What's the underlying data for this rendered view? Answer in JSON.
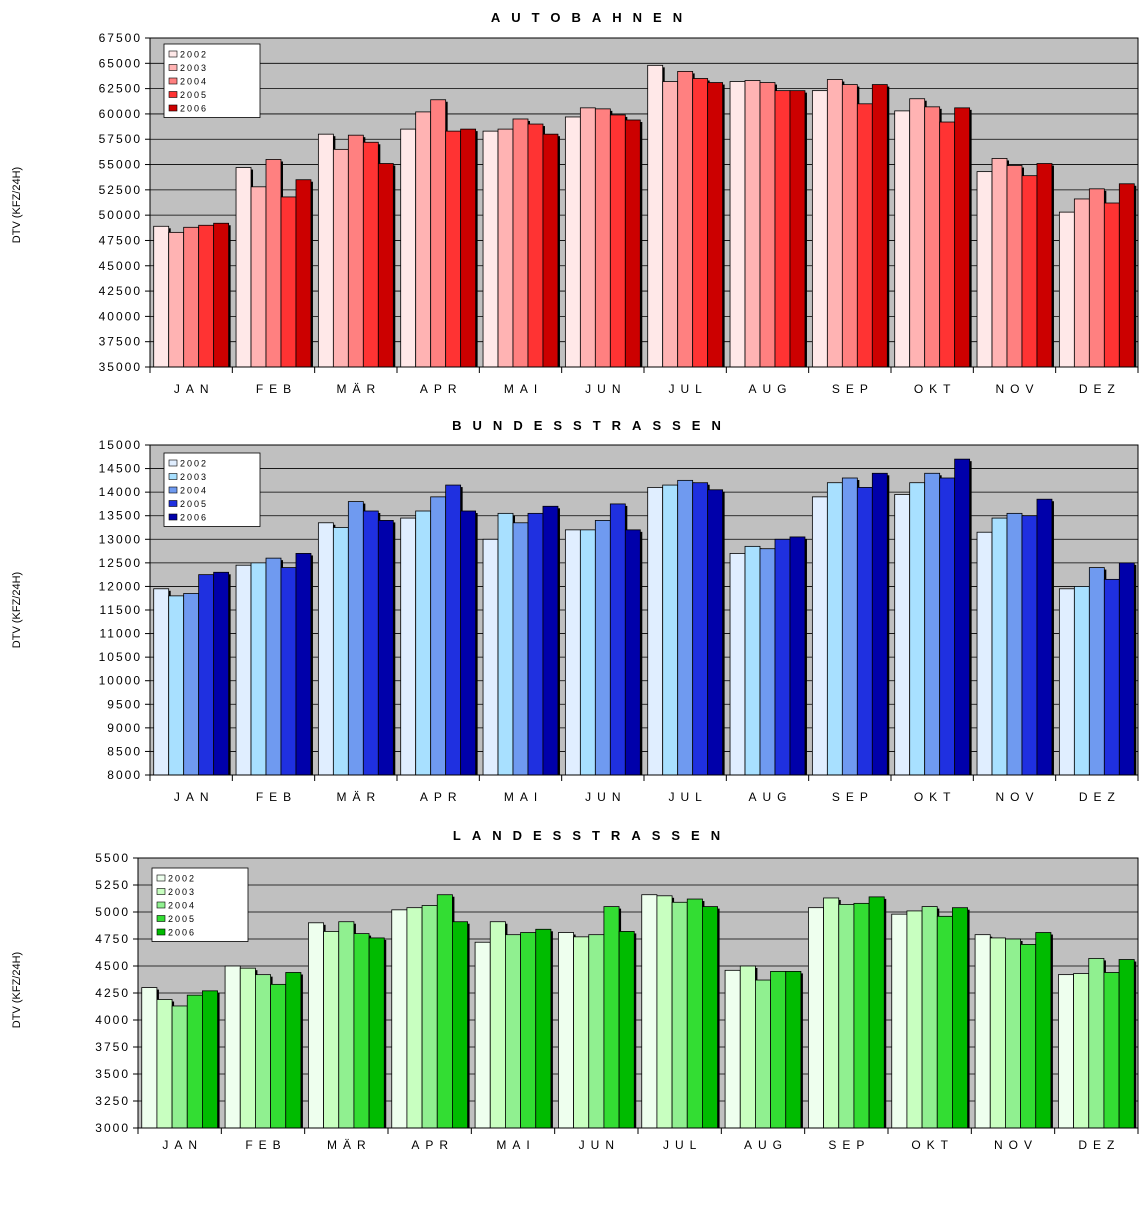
{
  "chart_data": [
    {
      "type": "bar",
      "title": "AUTOBAHNEN",
      "ylabel": "DTV (KFZ/24H)",
      "ylim": [
        35000,
        67500
      ],
      "ystep": 2500,
      "yticks": [
        "35000",
        "37500",
        "40000",
        "42500",
        "45000",
        "47500",
        "50000",
        "52500",
        "55000",
        "57500",
        "60000",
        "62500",
        "65000",
        "67500"
      ],
      "grid": true,
      "legend_position": "top-left",
      "categories": [
        "JAN",
        "FEB",
        "MÄR",
        "APR",
        "MAI",
        "JUN",
        "JUL",
        "AUG",
        "SEP",
        "OKT",
        "NOV",
        "DEZ"
      ],
      "colors": [
        "#FFE8E8",
        "#FFB3B3",
        "#FF8080",
        "#FF3333",
        "#CC0000"
      ],
      "series": [
        {
          "name": "2002",
          "values": [
            48900,
            54700,
            58000,
            58500,
            58300,
            59700,
            64800,
            63200,
            62300,
            60300,
            54300,
            50300
          ]
        },
        {
          "name": "2003",
          "values": [
            48300,
            52800,
            56500,
            60200,
            58500,
            60600,
            63200,
            63300,
            63400,
            61500,
            55600,
            51600
          ]
        },
        {
          "name": "2004",
          "values": [
            48800,
            55500,
            57900,
            61400,
            59500,
            60500,
            64200,
            63100,
            62900,
            60700,
            54900,
            52600
          ]
        },
        {
          "name": "2005",
          "values": [
            49000,
            51800,
            57200,
            58300,
            59000,
            59900,
            63500,
            62300,
            61000,
            59200,
            53900,
            51200
          ]
        },
        {
          "name": "2006",
          "values": [
            49200,
            53500,
            55100,
            58500,
            58000,
            59400,
            63100,
            62300,
            62900,
            60600,
            55100,
            53100
          ]
        }
      ]
    },
    {
      "type": "bar",
      "title": "BUNDESSTRASSEN",
      "ylabel": "DTV (KFZ/24H)",
      "ylim": [
        8000,
        15000
      ],
      "ystep": 500,
      "yticks": [
        "8000",
        "8500",
        "9000",
        "9500",
        "10000",
        "10500",
        "11000",
        "11500",
        "12000",
        "12500",
        "13000",
        "13500",
        "14000",
        "14500",
        "15000"
      ],
      "grid": true,
      "legend_position": "top-left",
      "categories": [
        "JAN",
        "FEB",
        "MÄR",
        "APR",
        "MAI",
        "JUN",
        "JUL",
        "AUG",
        "SEP",
        "OKT",
        "NOV",
        "DEZ"
      ],
      "colors": [
        "#E0EEFF",
        "#A8E0FF",
        "#6F9AF0",
        "#1F30E0",
        "#0000AA"
      ],
      "series": [
        {
          "name": "2002",
          "values": [
            11950,
            12450,
            13350,
            13450,
            13000,
            13200,
            14100,
            12700,
            13900,
            13950,
            13150,
            11950
          ]
        },
        {
          "name": "2003",
          "values": [
            11800,
            12500,
            13250,
            13600,
            13550,
            13200,
            14150,
            12850,
            14200,
            14200,
            13450,
            12000
          ]
        },
        {
          "name": "2004",
          "values": [
            11850,
            12600,
            13800,
            13900,
            13350,
            13400,
            14250,
            12800,
            14300,
            14400,
            13550,
            12400
          ]
        },
        {
          "name": "2005",
          "values": [
            12250,
            12400,
            13600,
            14150,
            13550,
            13750,
            14200,
            13000,
            14100,
            14300,
            13500,
            12150
          ]
        },
        {
          "name": "2006",
          "values": [
            12300,
            12700,
            13400,
            13600,
            13700,
            13200,
            14050,
            13050,
            14400,
            14700,
            13850,
            12500
          ]
        }
      ]
    },
    {
      "type": "bar",
      "title": "LANDESSTRASSEN",
      "ylabel": "DTV (KFZ/24H)",
      "ylim": [
        3000,
        5500
      ],
      "ystep": 250,
      "yticks": [
        "3000",
        "3250",
        "3500",
        "3750",
        "4000",
        "4250",
        "4500",
        "4750",
        "5000",
        "5250",
        "5500"
      ],
      "grid": true,
      "legend_position": "top-left",
      "categories": [
        "JAN",
        "FEB",
        "MÄR",
        "APR",
        "MAI",
        "JUN",
        "JUL",
        "AUG",
        "SEP",
        "OKT",
        "NOV",
        "DEZ"
      ],
      "colors": [
        "#EEFFEE",
        "#C8FFC0",
        "#90F090",
        "#33DD33",
        "#00BB00"
      ],
      "series": [
        {
          "name": "2002",
          "values": [
            4300,
            4500,
            4900,
            5020,
            4720,
            4810,
            5160,
            4460,
            5040,
            4980,
            4790,
            4420
          ]
        },
        {
          "name": "2003",
          "values": [
            4190,
            4480,
            4820,
            5040,
            4910,
            4770,
            5150,
            4500,
            5130,
            5010,
            4760,
            4430
          ]
        },
        {
          "name": "2004",
          "values": [
            4130,
            4420,
            4910,
            5060,
            4790,
            4790,
            5090,
            4370,
            5070,
            5050,
            4750,
            4570
          ]
        },
        {
          "name": "2005",
          "values": [
            4230,
            4330,
            4800,
            5160,
            4810,
            5050,
            5120,
            4450,
            5080,
            4960,
            4700,
            4440
          ]
        },
        {
          "name": "2006",
          "values": [
            4270,
            4440,
            4760,
            4910,
            4840,
            4820,
            5050,
            4450,
            5140,
            5040,
            4810,
            4560
          ]
        }
      ]
    }
  ]
}
